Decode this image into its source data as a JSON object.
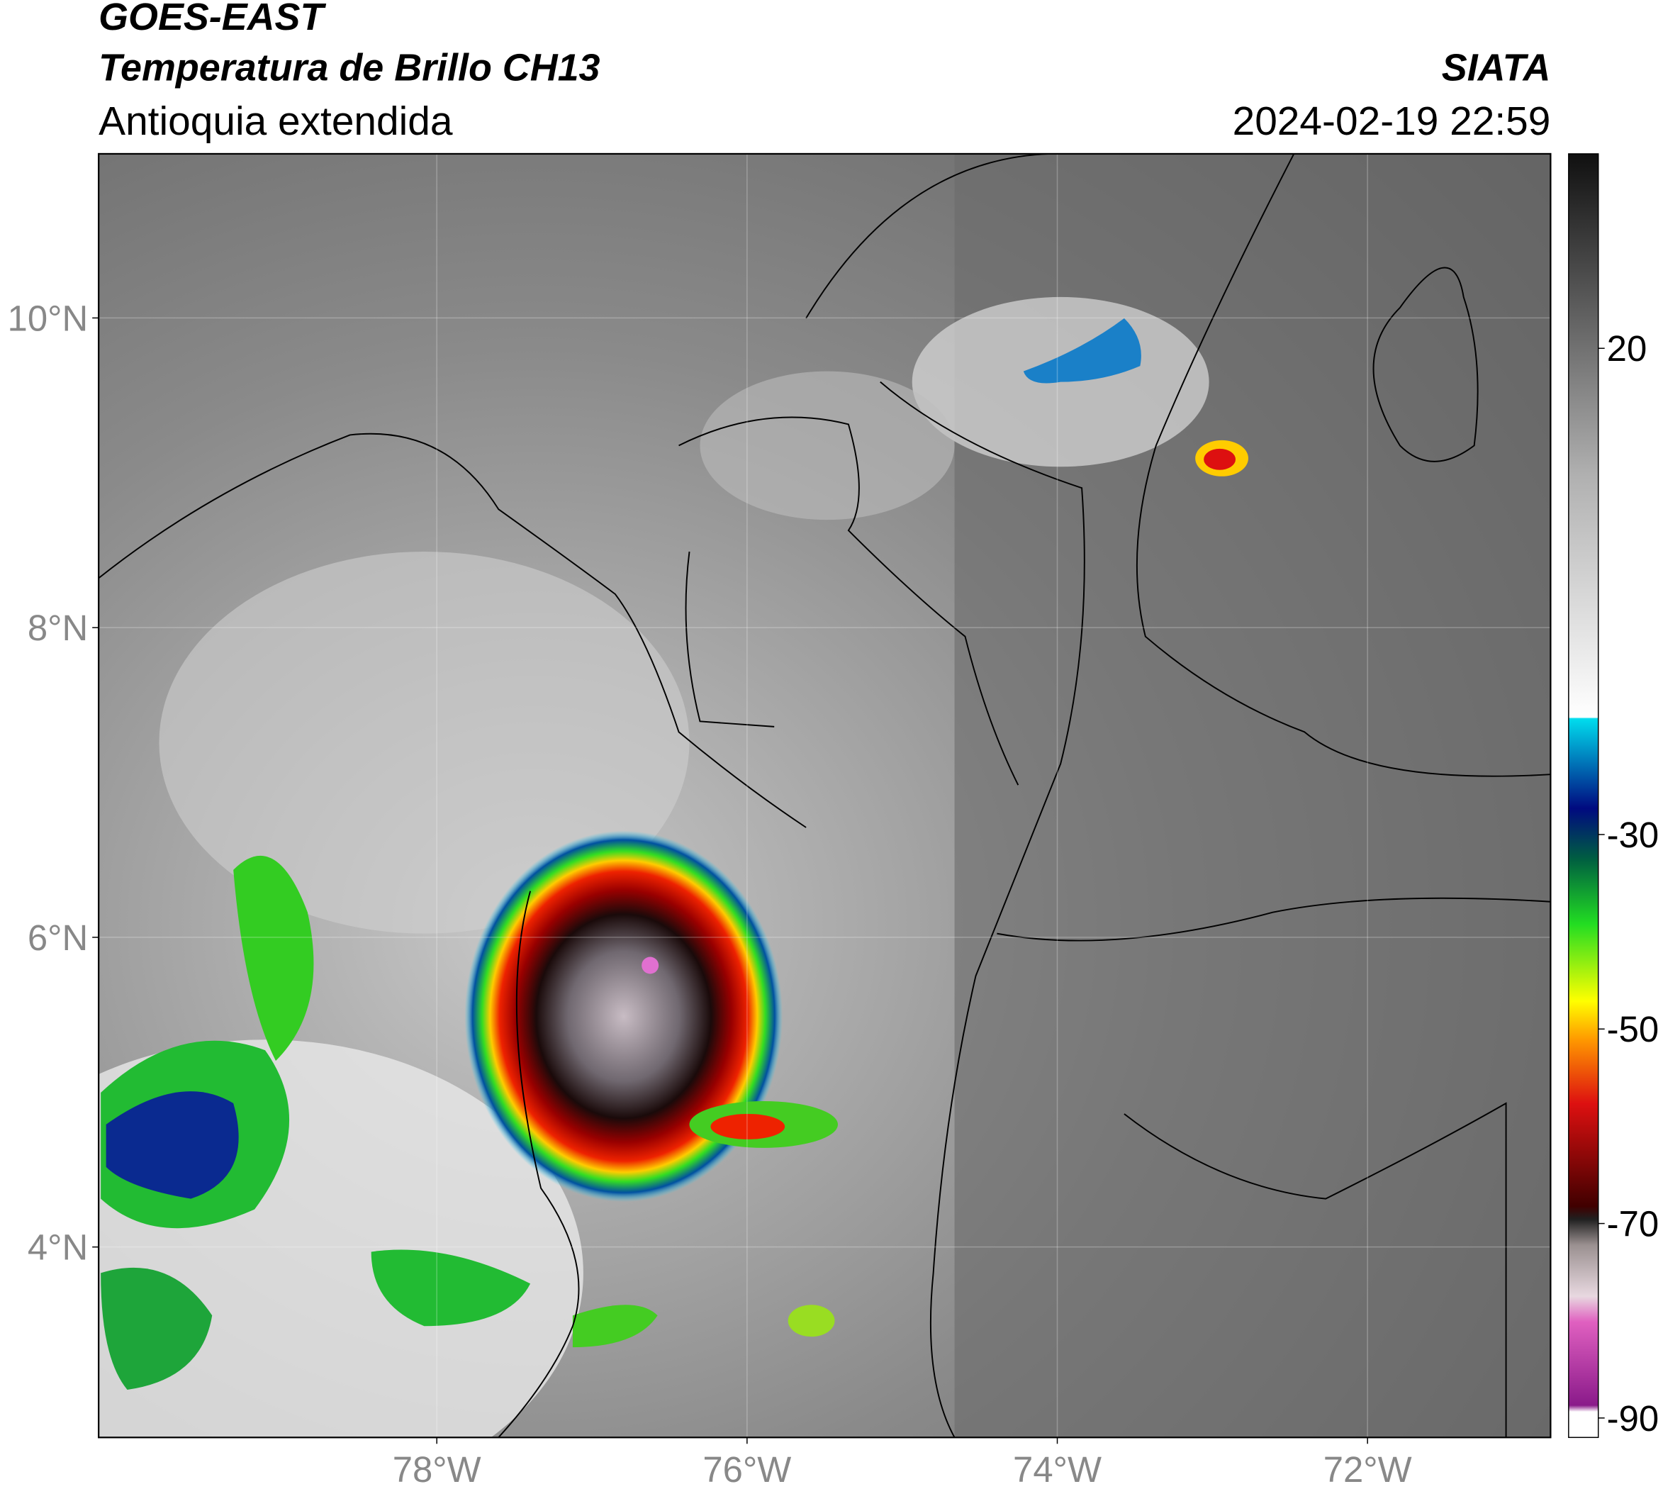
{
  "header": {
    "satellite": "GOES-EAST",
    "product": "Temperatura de Brillo CH13",
    "region": "Antioquia extendida",
    "source": "SIATA",
    "datetime": "2024-02-19 22:59"
  },
  "map": {
    "lat_range": [
      2.77,
      11.06
    ],
    "lon_range": [
      -80.18,
      -70.82
    ],
    "lat_ticks": [
      {
        "value": 10,
        "label": "10°N"
      },
      {
        "value": 8,
        "label": "8°N"
      },
      {
        "value": 6,
        "label": "6°N"
      },
      {
        "value": 4,
        "label": "4°N"
      }
    ],
    "lon_ticks": [
      {
        "value": -78,
        "label": "78°W"
      },
      {
        "value": -76,
        "label": "76°W"
      },
      {
        "value": -74,
        "label": "74°W"
      },
      {
        "value": -72,
        "label": "72°W"
      }
    ]
  },
  "colorbar": {
    "range": [
      -92,
      40
    ],
    "ticks": [
      20,
      -30,
      -50,
      -70,
      -90
    ]
  }
}
